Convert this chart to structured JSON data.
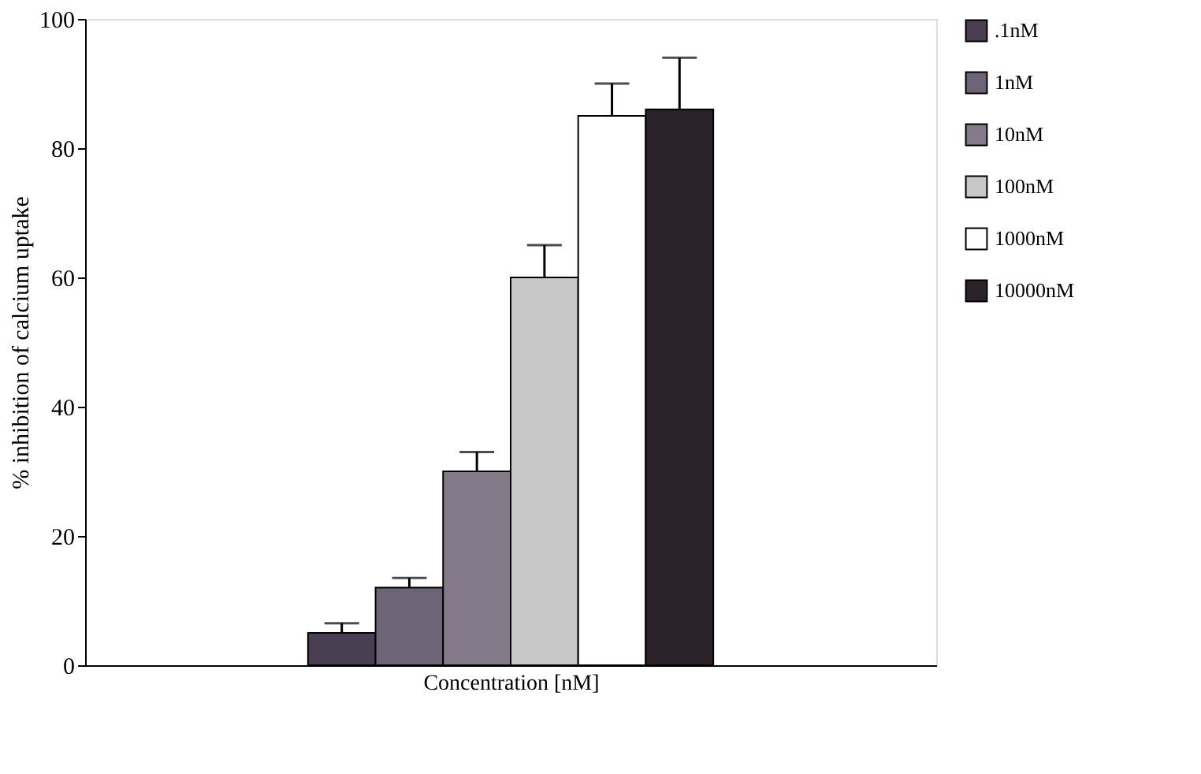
{
  "chart_data": {
    "type": "bar",
    "xlabel": "Concentration [nM]",
    "ylabel": "% inhibition of calcium uptake",
    "categories": [
      null
    ],
    "series": [
      {
        "name": ".1nM",
        "color": "#4a3f52",
        "values": [
          5
        ],
        "errors": [
          [
            5,
            6.5
          ]
        ]
      },
      {
        "name": "1nM",
        "color": "#6e6478",
        "values": [
          12
        ],
        "errors": [
          [
            12,
            13.5
          ]
        ]
      },
      {
        "name": "10nM",
        "color": "#857a8a",
        "values": [
          30
        ],
        "errors": [
          [
            30,
            33
          ]
        ]
      },
      {
        "name": "100nM",
        "color": "#c8c8c8",
        "values": [
          60
        ],
        "errors": [
          [
            60,
            65
          ]
        ]
      },
      {
        "name": "1000nM",
        "color": "#ffffff",
        "values": [
          85
        ],
        "errors": [
          [
            85,
            90
          ]
        ]
      },
      {
        "name": "10000nM",
        "color": "#2b2329",
        "values": [
          86
        ],
        "errors": [
          [
            86,
            94
          ]
        ]
      }
    ],
    "ylim": [
      0,
      100
    ],
    "yticks": [
      0,
      20,
      40,
      60,
      80,
      100
    ],
    "grid": false,
    "legend": "right",
    "tick_labels": "y"
  }
}
